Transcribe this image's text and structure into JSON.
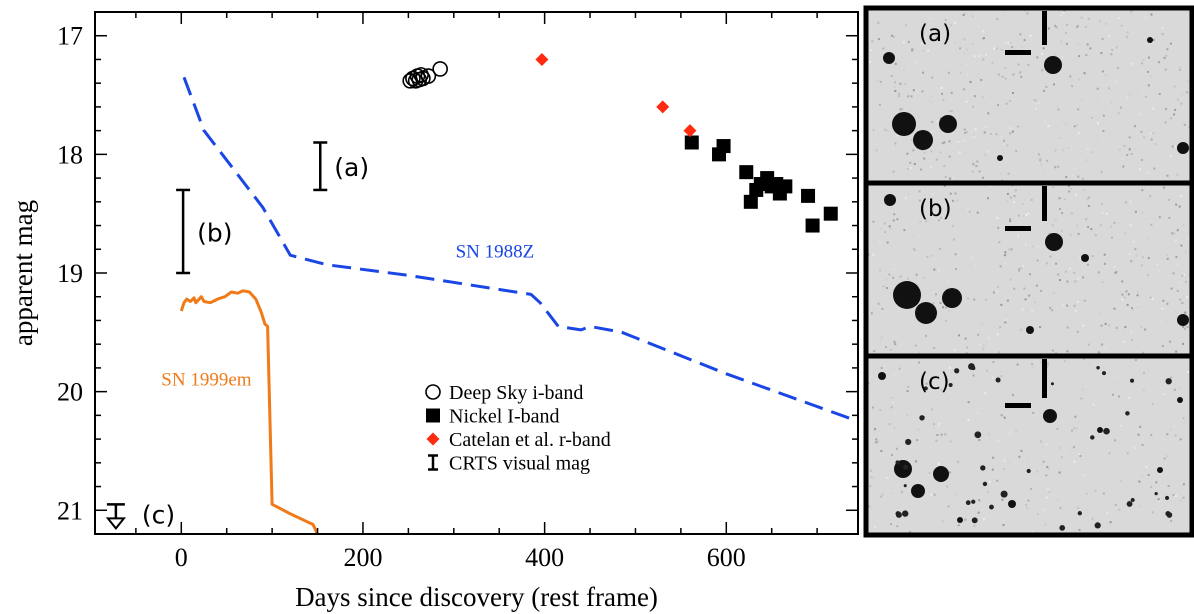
{
  "chart_data": {
    "type": "scatter",
    "xlabel": "Days since discovery (rest frame)",
    "ylabel": "apparent mag",
    "xlim": [
      -95,
      745
    ],
    "ylim": [
      21.2,
      16.8
    ],
    "y_inverted": true,
    "xticks": [
      0,
      200,
      400,
      600
    ],
    "yticks": [
      17,
      18,
      19,
      20,
      21
    ],
    "grid": false,
    "legend_position": "lower-center",
    "series": [
      {
        "name": "Deep Sky i-band",
        "marker": "open-circle",
        "color": "#000000",
        "points": [
          [
            252,
            17.38
          ],
          [
            255,
            17.36
          ],
          [
            258,
            17.38
          ],
          [
            260,
            17.34
          ],
          [
            262,
            17.37
          ],
          [
            264,
            17.33
          ],
          [
            266,
            17.36
          ],
          [
            272,
            17.34
          ],
          [
            285,
            17.28
          ]
        ]
      },
      {
        "name": "Nickel I-band",
        "marker": "filled-square",
        "color": "#000000",
        "points": [
          [
            562,
            17.9
          ],
          [
            592,
            18.0
          ],
          [
            597,
            17.93
          ],
          [
            622,
            18.15
          ],
          [
            627,
            18.4
          ],
          [
            633,
            18.3
          ],
          [
            638,
            18.25
          ],
          [
            645,
            18.2
          ],
          [
            650,
            18.27
          ],
          [
            655,
            18.25
          ],
          [
            659,
            18.33
          ],
          [
            665,
            18.27
          ],
          [
            690,
            18.35
          ],
          [
            695,
            18.6
          ],
          [
            715,
            18.5
          ]
        ]
      },
      {
        "name": "Catelan et al. r-band",
        "marker": "filled-diamond",
        "color": "#ff2a10",
        "points": [
          [
            397,
            17.2
          ],
          [
            530,
            17.6
          ],
          [
            560,
            17.8
          ]
        ]
      },
      {
        "name": "CRTS visual mag",
        "marker": "range-bar",
        "color": "#000000",
        "ranges": [
          {
            "x": 153,
            "y_low": 17.9,
            "y_high": 18.3,
            "label": "(a)"
          },
          {
            "x": 2,
            "y_low": 18.3,
            "y_high": 19.0,
            "label": "(b)"
          }
        ],
        "upper_limit": {
          "x": -72,
          "y": 20.95,
          "label": "(c)"
        }
      }
    ],
    "comparison_curves": [
      {
        "name": "SN 1988Z",
        "color": "#1a46e6",
        "style": "dashed",
        "points": [
          [
            3,
            17.35
          ],
          [
            25,
            17.8
          ],
          [
            55,
            18.1
          ],
          [
            90,
            18.45
          ],
          [
            120,
            18.85
          ],
          [
            160,
            18.93
          ],
          [
            250,
            19.02
          ],
          [
            385,
            19.18
          ],
          [
            395,
            19.25
          ],
          [
            415,
            19.45
          ],
          [
            440,
            19.48
          ],
          [
            450,
            19.45
          ],
          [
            485,
            19.5
          ],
          [
            600,
            19.85
          ],
          [
            745,
            20.25
          ]
        ]
      },
      {
        "name": "SN 1999em",
        "color": "#f07a17",
        "style": "solid",
        "points": [
          [
            0,
            19.32
          ],
          [
            3,
            19.25
          ],
          [
            6,
            19.22
          ],
          [
            10,
            19.24
          ],
          [
            14,
            19.21
          ],
          [
            16,
            19.25
          ],
          [
            22,
            19.2
          ],
          [
            25,
            19.24
          ],
          [
            32,
            19.25
          ],
          [
            40,
            19.22
          ],
          [
            48,
            19.2
          ],
          [
            55,
            19.16
          ],
          [
            62,
            19.17
          ],
          [
            68,
            19.15
          ],
          [
            75,
            19.16
          ],
          [
            82,
            19.22
          ],
          [
            88,
            19.33
          ],
          [
            92,
            19.43
          ],
          [
            95,
            19.45
          ],
          [
            100,
            20.95
          ],
          [
            120,
            21.03
          ],
          [
            145,
            21.12
          ],
          [
            150,
            21.2
          ]
        ]
      }
    ]
  },
  "image_panels": [
    {
      "label": "(a)"
    },
    {
      "label": "(b)"
    },
    {
      "label": "(c)"
    }
  ]
}
